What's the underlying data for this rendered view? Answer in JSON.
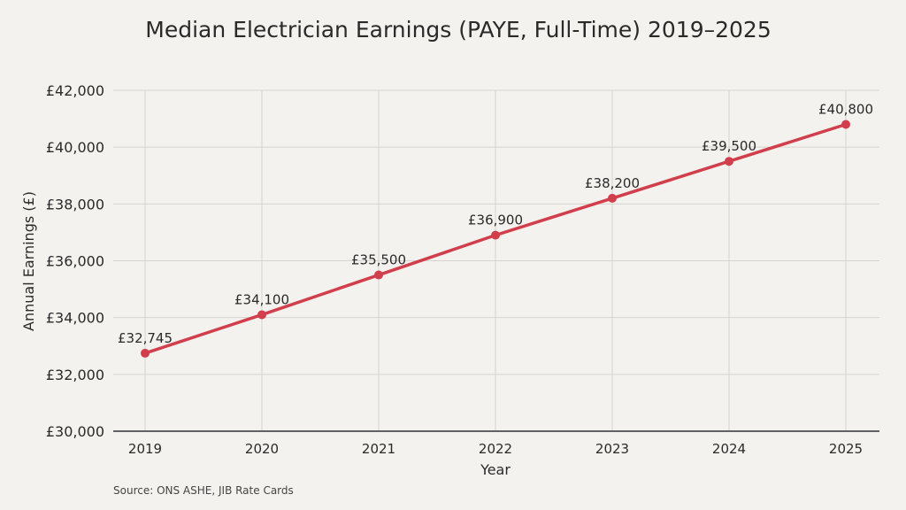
{
  "chart_data": {
    "type": "line",
    "title": "Median Electrician Earnings (PAYE, Full-Time) 2019–2025",
    "xlabel": "Year",
    "ylabel": "Annual Earnings (£)",
    "x": [
      "2019",
      "2020",
      "2021",
      "2022",
      "2023",
      "2024",
      "2025"
    ],
    "values": [
      32745,
      34100,
      35500,
      36900,
      38200,
      39500,
      40800
    ],
    "data_labels": [
      "£32,745",
      "£34,100",
      "£35,500",
      "£36,900",
      "£38,200",
      "£39,500",
      "£40,800"
    ],
    "ylim": [
      30000,
      42000
    ],
    "yticks": [
      30000,
      32000,
      34000,
      36000,
      38000,
      40000,
      42000
    ],
    "ytick_labels": [
      "£30,000",
      "£32,000",
      "£34,000",
      "£36,000",
      "£38,000",
      "£40,000",
      "£42,000"
    ],
    "grid": true,
    "line_color": "#d13f4d",
    "source": "Source: ONS ASHE, JIB Rate Cards"
  }
}
